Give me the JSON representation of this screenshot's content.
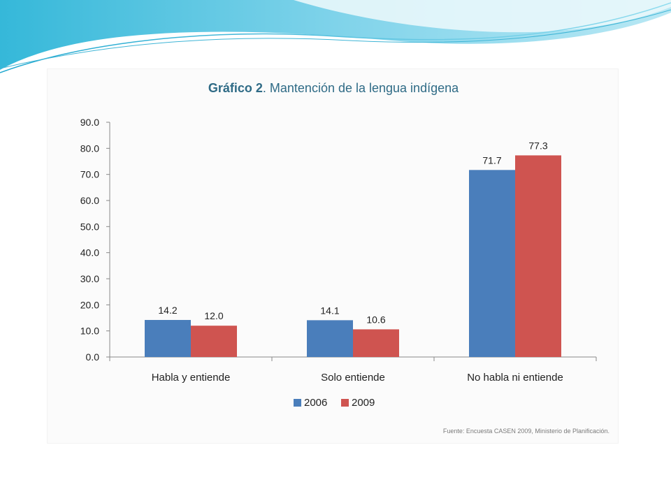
{
  "chart_data": {
    "type": "bar",
    "title": {
      "prefix": "Gráfico 2",
      "text": ". Mantención de la lengua indígena"
    },
    "categories": [
      "Habla y entiende",
      "Solo entiende",
      "No habla ni entiende"
    ],
    "series": [
      {
        "name": "2006",
        "color": "#4a7ebb",
        "values": [
          14.2,
          14.1,
          71.7
        ]
      },
      {
        "name": "2009",
        "color": "#cf5450",
        "values": [
          12.0,
          10.6,
          77.3
        ]
      }
    ],
    "ylim": [
      0,
      90
    ],
    "yticks": [
      "0.0",
      "10.0",
      "20.0",
      "30.0",
      "40.0",
      "50.0",
      "60.0",
      "70.0",
      "80.0",
      "90.0"
    ],
    "grid": false,
    "legend_position": "bottom-center",
    "source_note": "Fuente: Encuesta CASEN 2009, Ministerio de Planificación."
  }
}
